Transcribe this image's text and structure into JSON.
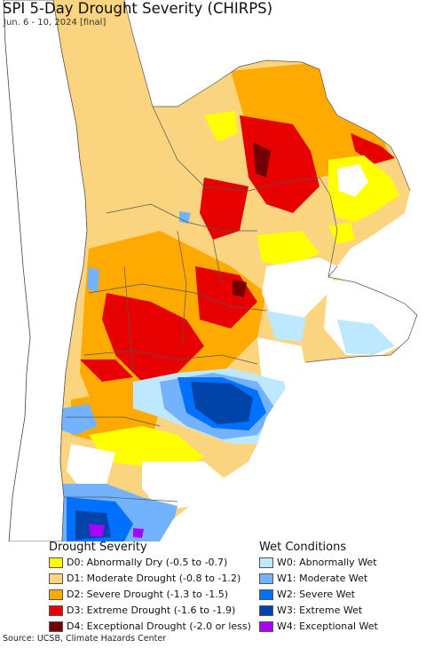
{
  "title": "SPI 5-Day Drought Severity (CHIRPS)",
  "subtitle": "Jun. 6 - 10, 2024 [final]",
  "legend": {
    "drought_heading": "Drought Severity",
    "wet_heading": "Wet Conditions",
    "drought": [
      {
        "label": "D0: Abnormally Dry (-0.5 to -0.7)",
        "color": "#ffff00"
      },
      {
        "label": "D1: Moderate Drought (-0.8 to -1.2)",
        "color": "#fbd47f"
      },
      {
        "label": "D2: Severe Drought (-1.3 to -1.5)",
        "color": "#ffaa00"
      },
      {
        "label": "D3: Extreme Drought (-1.6 to -1.9)",
        "color": "#e60000"
      },
      {
        "label": "D4: Exceptional Drought (-2.0 or less)",
        "color": "#730000"
      }
    ],
    "wet": [
      {
        "label": "W0: Abnormally Wet",
        "color": "#bee8ff"
      },
      {
        "label": "W1: Moderate Wet",
        "color": "#73b2ff"
      },
      {
        "label": "W2: Severe Wet",
        "color": "#0070ff"
      },
      {
        "label": "W3: Extreme Wet",
        "color": "#0044aa"
      },
      {
        "label": "W4: Exceptional Wet",
        "color": "#aa00ff"
      }
    ]
  },
  "source": "Source: UCSB, Climate Hazards Center"
}
